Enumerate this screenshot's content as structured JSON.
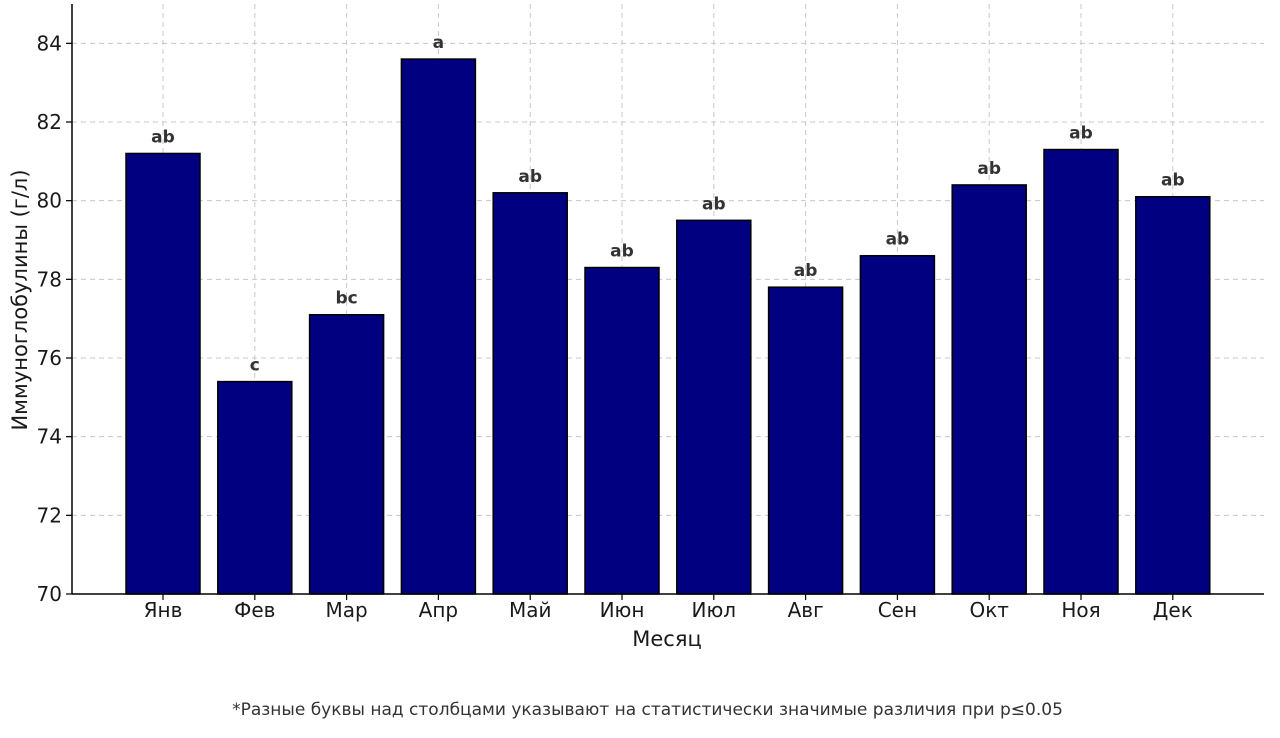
{
  "chart_data": {
    "type": "bar",
    "title": "",
    "xlabel": "Месяц",
    "ylabel": "Иммуноглобулины (г/л)",
    "categories": [
      "Янв",
      "Фев",
      "Мар",
      "Апр",
      "Май",
      "Июн",
      "Июл",
      "Авг",
      "Сен",
      "Окт",
      "Ноя",
      "Дек"
    ],
    "values": [
      81.2,
      75.4,
      77.1,
      83.6,
      80.2,
      78.3,
      79.5,
      77.8,
      78.6,
      80.4,
      81.3,
      80.1
    ],
    "letters": [
      "ab",
      "c",
      "bc",
      "a",
      "ab",
      "ab",
      "ab",
      "ab",
      "ab",
      "ab",
      "ab",
      "ab"
    ],
    "ylim": [
      70,
      85
    ],
    "yticks": [
      "70",
      "72",
      "74",
      "76",
      "78",
      "80",
      "82",
      "84"
    ],
    "grid": true,
    "colors": {
      "bar": "#000080",
      "bar_edge": "#000000",
      "grid": "#c8c8c8",
      "letter": "#333333"
    }
  },
  "footnote": "*Разные буквы над столбцами указывают на статистически значимые различия при p≤0.05"
}
